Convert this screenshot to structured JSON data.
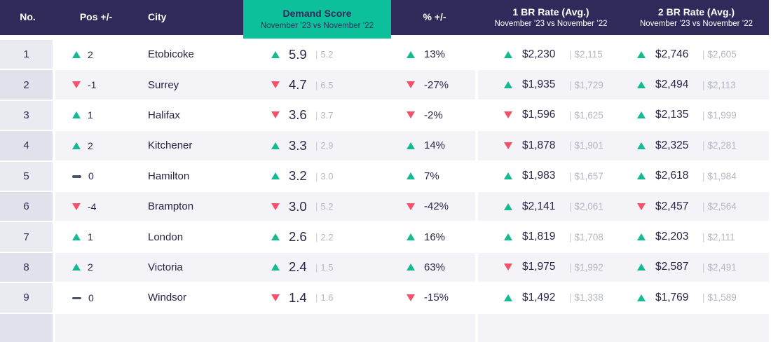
{
  "colors": {
    "header_bg": "#2f2a5a",
    "accent_teal": "#0cc09c",
    "up_green": "#15ba90",
    "down_red": "#f4506a",
    "text_dark": "#2a2547",
    "text_muted": "#b4b7c4"
  },
  "header": {
    "no": "No.",
    "pos": "Pos +/-",
    "city": "City",
    "demand_title": "Demand Score",
    "demand_subtitle": "November ’23 vs November ’22",
    "pct": "% +/-",
    "br1_title": "1 BR Rate (Avg.)",
    "br1_subtitle": "November ’23 vs November ’22",
    "br2_title": "2 BR Rate (Avg.)",
    "br2_subtitle": "November ’23 vs November ’22"
  },
  "rows": [
    {
      "no": "1",
      "pos_dir": "up",
      "pos": "2",
      "city": "Etobicoke",
      "demand_dir": "up",
      "demand": "5.9",
      "demand_prev": "5.2",
      "pct_dir": "up",
      "pct": "13%",
      "br1_dir": "up",
      "br1": "$2,230",
      "br1_prev": "$2,115",
      "br2_dir": "up",
      "br2": "$2,746",
      "br2_prev": "$2,605"
    },
    {
      "no": "2",
      "pos_dir": "down",
      "pos": "-1",
      "city": "Surrey",
      "demand_dir": "down",
      "demand": "4.7",
      "demand_prev": "6.5",
      "pct_dir": "down",
      "pct": "-27%",
      "br1_dir": "up",
      "br1": "$1,935",
      "br1_prev": "$1,729",
      "br2_dir": "up",
      "br2": "$2,494",
      "br2_prev": "$2,113"
    },
    {
      "no": "3",
      "pos_dir": "up",
      "pos": "1",
      "city": "Halifax",
      "demand_dir": "down",
      "demand": "3.6",
      "demand_prev": "3.7",
      "pct_dir": "down",
      "pct": "-2%",
      "br1_dir": "down",
      "br1": "$1,596",
      "br1_prev": "$1,625",
      "br2_dir": "up",
      "br2": "$2,135",
      "br2_prev": "$1,999"
    },
    {
      "no": "4",
      "pos_dir": "up",
      "pos": "2",
      "city": "Kitchener",
      "demand_dir": "up",
      "demand": "3.3",
      "demand_prev": "2.9",
      "pct_dir": "up",
      "pct": "14%",
      "br1_dir": "down",
      "br1": "$1,878",
      "br1_prev": "$1,901",
      "br2_dir": "up",
      "br2": "$2,325",
      "br2_prev": "$2,281"
    },
    {
      "no": "5",
      "pos_dir": "flat",
      "pos": "0",
      "city": "Hamilton",
      "demand_dir": "up",
      "demand": "3.2",
      "demand_prev": "3.0",
      "pct_dir": "up",
      "pct": "7%",
      "br1_dir": "up",
      "br1": "$1,983",
      "br1_prev": "$1,657",
      "br2_dir": "up",
      "br2": "$2,618",
      "br2_prev": "$1,984"
    },
    {
      "no": "6",
      "pos_dir": "down",
      "pos": "-4",
      "city": "Brampton",
      "demand_dir": "down",
      "demand": "3.0",
      "demand_prev": "5.2",
      "pct_dir": "down",
      "pct": "-42%",
      "br1_dir": "up",
      "br1": "$2,141",
      "br1_prev": "$2,061",
      "br2_dir": "down",
      "br2": "$2,457",
      "br2_prev": "$2,564"
    },
    {
      "no": "7",
      "pos_dir": "up",
      "pos": "1",
      "city": "London",
      "demand_dir": "up",
      "demand": "2.6",
      "demand_prev": "2.2",
      "pct_dir": "up",
      "pct": "16%",
      "br1_dir": "up",
      "br1": "$1,819",
      "br1_prev": "$1,708",
      "br2_dir": "up",
      "br2": "$2,203",
      "br2_prev": "$2,111"
    },
    {
      "no": "8",
      "pos_dir": "up",
      "pos": "2",
      "city": "Victoria",
      "demand_dir": "up",
      "demand": "2.4",
      "demand_prev": "1.5",
      "pct_dir": "up",
      "pct": "63%",
      "br1_dir": "down",
      "br1": "$1,975",
      "br1_prev": "$1,992",
      "br2_dir": "up",
      "br2": "$2,587",
      "br2_prev": "$2,491"
    },
    {
      "no": "9",
      "pos_dir": "flat",
      "pos": "0",
      "city": "Windsor",
      "demand_dir": "down",
      "demand": "1.4",
      "demand_prev": "1.6",
      "pct_dir": "down",
      "pct": "-15%",
      "br1_dir": "up",
      "br1": "$1,492",
      "br1_prev": "$1,338",
      "br2_dir": "up",
      "br2": "$1,769",
      "br2_prev": "$1,589"
    }
  ]
}
